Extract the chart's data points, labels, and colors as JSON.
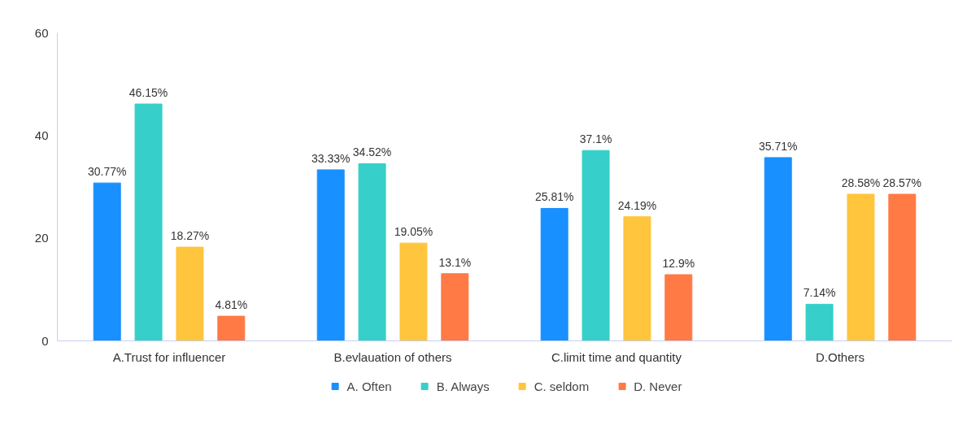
{
  "chart_data": {
    "type": "bar",
    "categories": [
      "A.Trust for influencer",
      "B.evlauation of others",
      "C.limit time and quantity",
      "D.Others"
    ],
    "series": [
      {
        "name": "A. Often",
        "color": "#1890ff",
        "values": [
          30.77,
          33.33,
          25.81,
          35.71
        ],
        "value_labels": [
          "30.77%",
          "33.33%",
          "25.81%",
          "35.71%"
        ]
      },
      {
        "name": "B. Always",
        "color": "#36cfc9",
        "values": [
          46.15,
          34.52,
          37.1,
          7.14
        ],
        "value_labels": [
          "46.15%",
          "34.52%",
          "37.1%",
          "7.14%"
        ]
      },
      {
        "name": "C. seldom",
        "color": "#ffc53d",
        "values": [
          18.27,
          19.05,
          24.19,
          28.58
        ],
        "value_labels": [
          "18.27%",
          "19.05%",
          "24.19%",
          "28.58%"
        ]
      },
      {
        "name": "D. Never",
        "color": "#ff7a45",
        "values": [
          4.81,
          13.1,
          12.9,
          28.57
        ],
        "value_labels": [
          "4.81%",
          "13.1%",
          "12.9%",
          "28.57%"
        ]
      }
    ],
    "ylim": [
      0,
      60
    ],
    "yticks": [
      0,
      20,
      40,
      60
    ],
    "grid": false,
    "legend": "bottom"
  }
}
